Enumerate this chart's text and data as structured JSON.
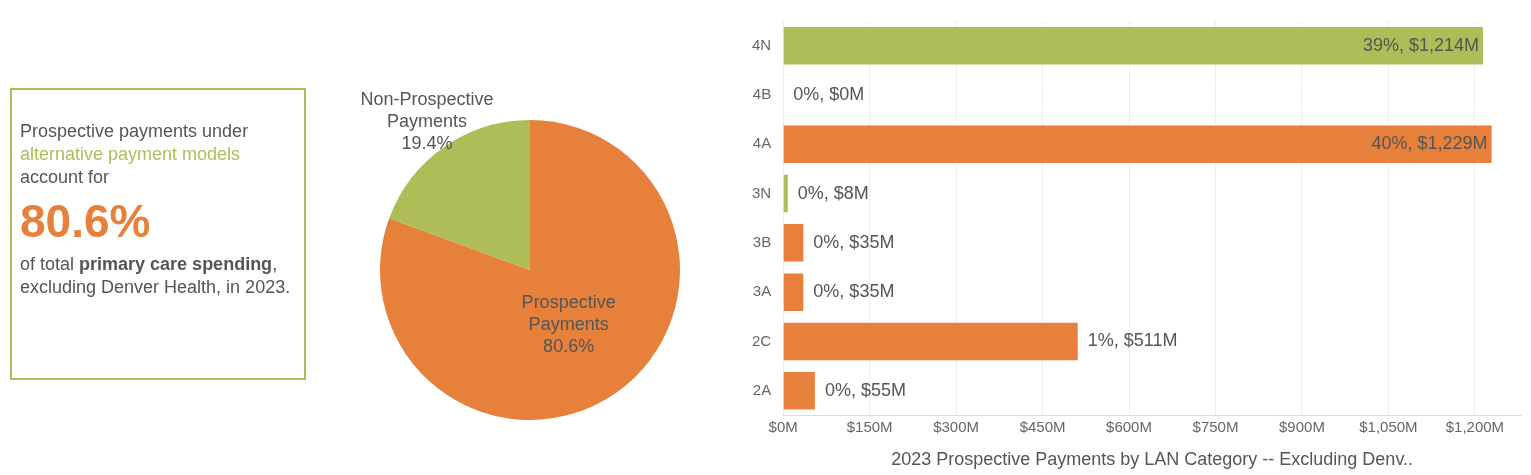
{
  "chart_data": [
    {
      "type": "other",
      "annotations": [
        "Prospective payments under ",
        "alternative payment models",
        " account for",
        "80.6%",
        "of total ",
        "primary care spending",
        ", excluding Denver Health, in 2023."
      ]
    },
    {
      "type": "pie",
      "categories": [
        "Prospective Payments",
        "Non-Prospective Payments"
      ],
      "values": [
        80.6,
        19.4
      ],
      "colors": [
        "#e6803a",
        "#afbd58"
      ],
      "value_labels": [
        "80.6%",
        "19.4%"
      ],
      "legend": false
    },
    {
      "type": "bar",
      "orientation": "horizontal",
      "xlabel": "2023 Prospective Payments by LAN Category -- Excluding Denv..",
      "categories": [
        "4N",
        "4B",
        "4A",
        "3N",
        "3B",
        "3A",
        "2C",
        "2A"
      ],
      "values": [
        1214,
        0,
        1229,
        8,
        35,
        35,
        511,
        55
      ],
      "colors": [
        "#afbd58",
        "#e6803a",
        "#e6803a",
        "#afbd58",
        "#e6803a",
        "#e6803a",
        "#e6803a",
        "#e6803a"
      ],
      "value_labels": [
        "$1,214M",
        "$0M",
        "$1,229M",
        "$8M",
        "$35M",
        "$35M",
        "$511M",
        "$55M"
      ],
      "annotations": [
        "39%,",
        {
          "text": "0%,",
          "x": 0,
          "y": "4B"
        },
        "40%,",
        {
          "text": "0%,",
          "x": 8,
          "y": "3N"
        },
        {
          "text": "0%,",
          "x": 35,
          "y": "3B"
        },
        {
          "text": "0%,",
          "x": 35,
          "y": "3A"
        },
        {
          "text": "1%,",
          "x": 511,
          "y": "2C"
        },
        {
          "text": "0%,",
          "x": 55,
          "y": "2A"
        }
      ],
      "xlim": [
        0,
        1280
      ],
      "xticks": [
        {
          "value": 0,
          "label": "$0M"
        },
        {
          "value": 150,
          "label": "$150M"
        },
        {
          "value": 300,
          "label": "$300M"
        },
        {
          "value": 450,
          "label": "$450M"
        },
        {
          "value": 600,
          "label": "$600M"
        },
        {
          "value": 750,
          "label": "$750M"
        },
        {
          "value": 900,
          "label": "$900M"
        },
        {
          "value": 1050,
          "label": "$1,050M"
        },
        {
          "value": 1200,
          "label": "$1,200M"
        }
      ],
      "grid": "x",
      "legend": false
    }
  ]
}
